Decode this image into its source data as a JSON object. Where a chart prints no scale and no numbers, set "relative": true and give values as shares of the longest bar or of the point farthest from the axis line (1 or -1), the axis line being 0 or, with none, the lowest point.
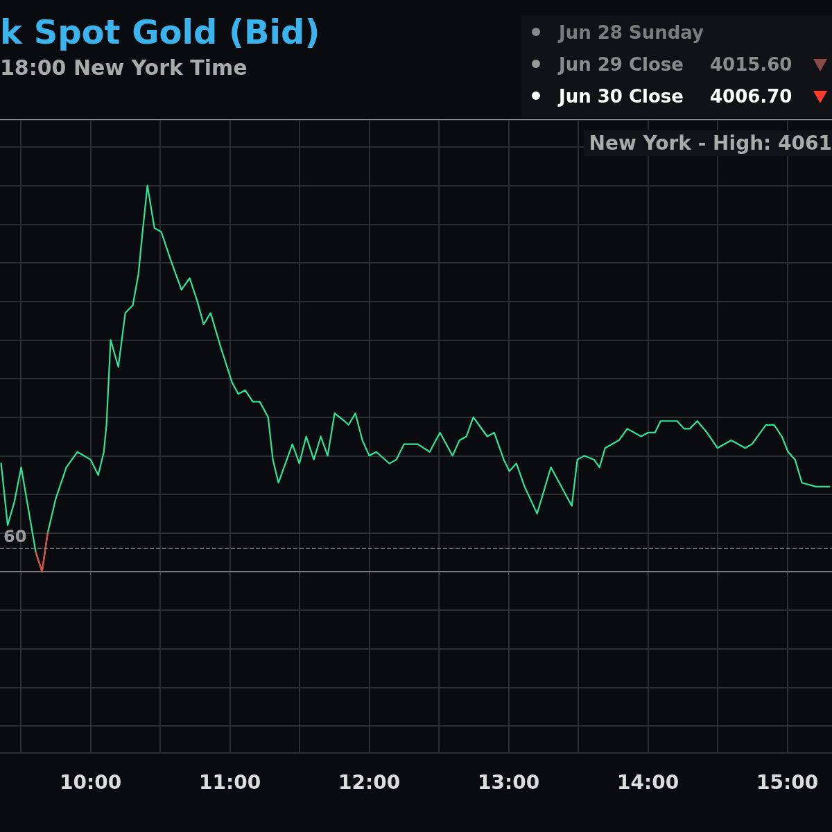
{
  "chart_data": {
    "type": "line",
    "relative": true,
    "title": "k Spot Gold (Bid)",
    "subtitle": "18:00 New York Time",
    "annotations": [
      "Jun 28 Sunday",
      "Jun 29 Close",
      "4015.60",
      "Jun 30 Close",
      "4006.70",
      "New York - High: 4061"
    ],
    "xlim": [
      9.35,
      15.32
    ],
    "xticks": [
      {
        "value": 9.5,
        "label": null
      },
      {
        "value": 10,
        "label": "10:00"
      },
      {
        "value": 10.5,
        "label": null
      },
      {
        "value": 11,
        "label": "11:00"
      },
      {
        "value": 11.5,
        "label": null
      },
      {
        "value": 12,
        "label": "12:00"
      },
      {
        "value": 12.5,
        "label": null
      },
      {
        "value": 13,
        "label": "13:00"
      },
      {
        "value": 13.5,
        "label": null
      },
      {
        "value": 14,
        "label": "14:00"
      },
      {
        "value": 14.5,
        "label": null
      },
      {
        "value": 15,
        "label": "15:00"
      }
    ],
    "x": [
      9.358,
      9.405,
      9.453,
      9.502,
      9.607,
      9.652,
      9.692,
      9.751,
      9.826,
      9.905,
      10.0,
      10.055,
      10.095,
      10.114,
      10.144,
      10.199,
      10.249,
      10.303,
      10.343,
      10.373,
      10.408,
      10.458,
      10.507,
      10.572,
      10.652,
      10.711,
      10.766,
      10.811,
      10.861,
      10.935,
      11.015,
      11.06,
      11.109,
      11.164,
      11.214,
      11.274,
      11.308,
      11.348,
      11.448,
      11.498,
      11.547,
      11.602,
      11.652,
      11.701,
      11.751,
      11.821,
      11.851,
      11.9,
      11.95,
      12.0,
      12.05,
      12.144,
      12.194,
      12.249,
      12.348,
      12.433,
      12.507,
      12.597,
      12.647,
      12.697,
      12.746,
      12.846,
      12.896,
      12.965,
      13.005,
      13.055,
      13.114,
      13.204,
      13.303,
      13.453,
      13.493,
      13.542,
      13.612,
      13.652,
      13.692,
      13.791,
      13.851,
      13.95,
      14.0,
      14.05,
      14.09,
      14.149,
      14.209,
      14.259,
      14.299,
      14.353,
      14.423,
      14.498,
      14.597,
      14.697,
      14.746,
      14.846,
      14.905,
      14.96,
      15.005,
      15.055,
      15.104,
      15.204,
      15.303
    ],
    "series": [
      {
        "color": "#2ee59a",
        "values": [
          0.28,
          0.12,
          0.18,
          0.27,
          0.05,
          0,
          0.1,
          0.19,
          0.27,
          0.31,
          0.29,
          0.25,
          0.31,
          0.38,
          0.6,
          0.53,
          0.67,
          0.69,
          0.77,
          0.88,
          1,
          0.89,
          0.88,
          0.81,
          0.73,
          0.76,
          0.7,
          0.64,
          0.67,
          0.58,
          0.49,
          0.46,
          0.47,
          0.44,
          0.44,
          0.4,
          0.29,
          0.23,
          0.33,
          0.28,
          0.35,
          0.29,
          0.35,
          0.3,
          0.41,
          0.39,
          0.38,
          0.41,
          0.34,
          0.3,
          0.31,
          0.28,
          0.29,
          0.33,
          0.33,
          0.31,
          0.36,
          0.3,
          0.34,
          0.35,
          0.4,
          0.35,
          0.36,
          0.29,
          0.26,
          0.28,
          0.22,
          0.15,
          0.27,
          0.17,
          0.29,
          0.3,
          0.29,
          0.27,
          0.32,
          0.34,
          0.37,
          0.35,
          0.36,
          0.36,
          0.39,
          0.39,
          0.39,
          0.37,
          0.37,
          0.39,
          0.36,
          0.32,
          0.34,
          0.32,
          0.33,
          0.38,
          0.38,
          0.35,
          0.31,
          0.29,
          0.23,
          0.22,
          0.22
        ]
      },
      {
        "color": "#e8453c",
        "values": [
          null,
          null,
          null,
          null,
          0.05,
          0,
          0.1,
          null,
          null,
          null,
          null,
          null,
          null,
          null,
          null,
          null,
          null,
          null,
          null,
          null,
          null,
          null,
          null,
          null,
          null,
          null,
          null,
          null,
          null,
          null,
          null,
          null,
          null,
          null,
          null,
          null,
          null,
          null,
          null,
          null,
          null,
          null,
          null,
          null,
          null,
          null,
          null,
          null,
          null,
          null,
          null,
          null,
          null,
          null,
          null,
          null,
          null,
          null,
          null,
          null,
          null,
          null,
          null,
          null,
          null,
          null,
          null,
          null,
          null,
          null,
          null,
          null,
          null,
          null,
          null,
          null,
          null,
          null,
          null,
          null,
          null,
          null,
          null,
          null,
          null,
          null,
          null,
          null,
          null,
          null,
          null,
          null,
          null,
          null,
          null,
          null,
          null,
          null,
          null
        ]
      }
    ],
    "ref_lines": [
      {
        "axis": "y",
        "value": 0.06,
        "label": "60",
        "color": "#8a8a8a",
        "line_style": "dashed"
      }
    ],
    "grid": true,
    "marker": "none",
    "line_style": "solid"
  }
}
